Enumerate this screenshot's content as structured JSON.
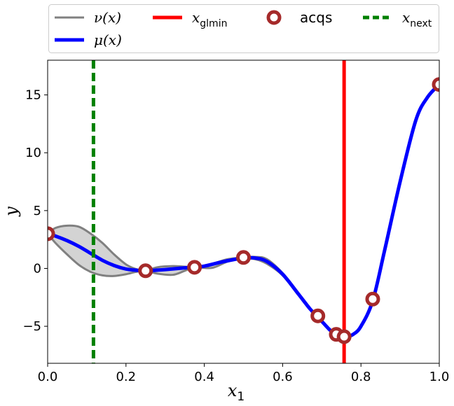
{
  "chart_data": {
    "type": "line",
    "xlabel": "x",
    "xlabel_sub": "1",
    "ylabel": "y",
    "xlim": [
      0.0,
      1.0
    ],
    "ylim": [
      -8.2,
      18.0
    ],
    "xticks": [
      0.0,
      0.2,
      0.4,
      0.6,
      0.8,
      1.0
    ],
    "xtick_labels": [
      "0.0",
      "0.2",
      "0.4",
      "0.6",
      "0.8",
      "1.0"
    ],
    "yticks": [
      -5,
      0,
      5,
      10,
      15
    ],
    "ytick_labels": [
      "−5",
      "0",
      "5",
      "10",
      "15"
    ],
    "grid": false,
    "legend_position": "above-plot",
    "legend": {
      "nu": {
        "math": "ν(x)"
      },
      "mu": {
        "math": "μ(x)"
      },
      "glmin": {
        "math": "x",
        "sub": "glmin"
      },
      "acqs": {
        "text": "acqs"
      },
      "next": {
        "math": "x",
        "sub": "next"
      }
    },
    "series": {
      "mu": {
        "color": "#0000ff",
        "x": [
          0,
          0.02,
          0.05,
          0.08,
          0.11,
          0.14,
          0.17,
          0.2,
          0.225,
          0.25,
          0.3,
          0.35,
          0.375,
          0.4,
          0.45,
          0.5,
          0.53,
          0.56,
          0.6,
          0.64,
          0.67,
          0.69,
          0.72,
          0.735,
          0.75,
          0.76,
          0.78,
          0.8,
          0.83,
          0.86,
          0.9,
          0.94,
          0.97,
          1.0
        ],
        "y": [
          3.0,
          2.8,
          2.4,
          1.9,
          1.3,
          0.7,
          0.25,
          -0.05,
          -0.15,
          -0.2,
          -0.1,
          0.05,
          0.1,
          0.2,
          0.6,
          0.9,
          0.9,
          0.6,
          -0.5,
          -2.2,
          -3.5,
          -4.2,
          -5.3,
          -5.7,
          -5.9,
          -5.95,
          -5.7,
          -5.0,
          -2.8,
          1.5,
          7.5,
          12.8,
          14.8,
          15.9
        ]
      },
      "nu_upper": {
        "color": "#808080",
        "x": [
          0,
          0.02,
          0.05,
          0.08,
          0.11,
          0.14,
          0.17,
          0.2,
          0.225,
          0.25,
          0.28,
          0.32,
          0.35,
          0.375,
          0.42,
          0.46,
          0.5,
          0.53,
          0.56,
          0.6,
          0.64
        ],
        "y": [
          3.0,
          3.5,
          3.7,
          3.6,
          3.0,
          2.2,
          1.2,
          0.35,
          -0.05,
          -0.2,
          0.1,
          0.2,
          0.15,
          0.1,
          0.4,
          0.8,
          0.95,
          1.0,
          0.8,
          -0.4,
          -2.1
        ]
      },
      "nu_lower": {
        "color": "#808080",
        "x": [
          0,
          0.02,
          0.05,
          0.08,
          0.11,
          0.14,
          0.17,
          0.2,
          0.225,
          0.25,
          0.28,
          0.32,
          0.35,
          0.375,
          0.42,
          0.46,
          0.5,
          0.53,
          0.56,
          0.6,
          0.64
        ],
        "y": [
          3.0,
          2.2,
          1.2,
          0.3,
          -0.3,
          -0.6,
          -0.65,
          -0.5,
          -0.3,
          -0.2,
          -0.45,
          -0.55,
          -0.2,
          0.1,
          0.05,
          0.6,
          0.85,
          0.8,
          0.4,
          -0.6,
          -2.3
        ]
      },
      "x_glmin": {
        "color": "#ff0000",
        "x": 0.757
      },
      "x_next": {
        "color": "#008000",
        "x": 0.117
      },
      "acqs": {
        "color": "#a52a2a",
        "points": [
          {
            "x": 0.0,
            "y": 3.0
          },
          {
            "x": 0.25,
            "y": -0.2
          },
          {
            "x": 0.375,
            "y": 0.1
          },
          {
            "x": 0.5,
            "y": 0.95
          },
          {
            "x": 0.69,
            "y": -4.1
          },
          {
            "x": 0.737,
            "y": -5.7
          },
          {
            "x": 0.757,
            "y": -5.9
          },
          {
            "x": 0.83,
            "y": -2.65
          },
          {
            "x": 1.0,
            "y": 15.9
          }
        ]
      }
    }
  }
}
